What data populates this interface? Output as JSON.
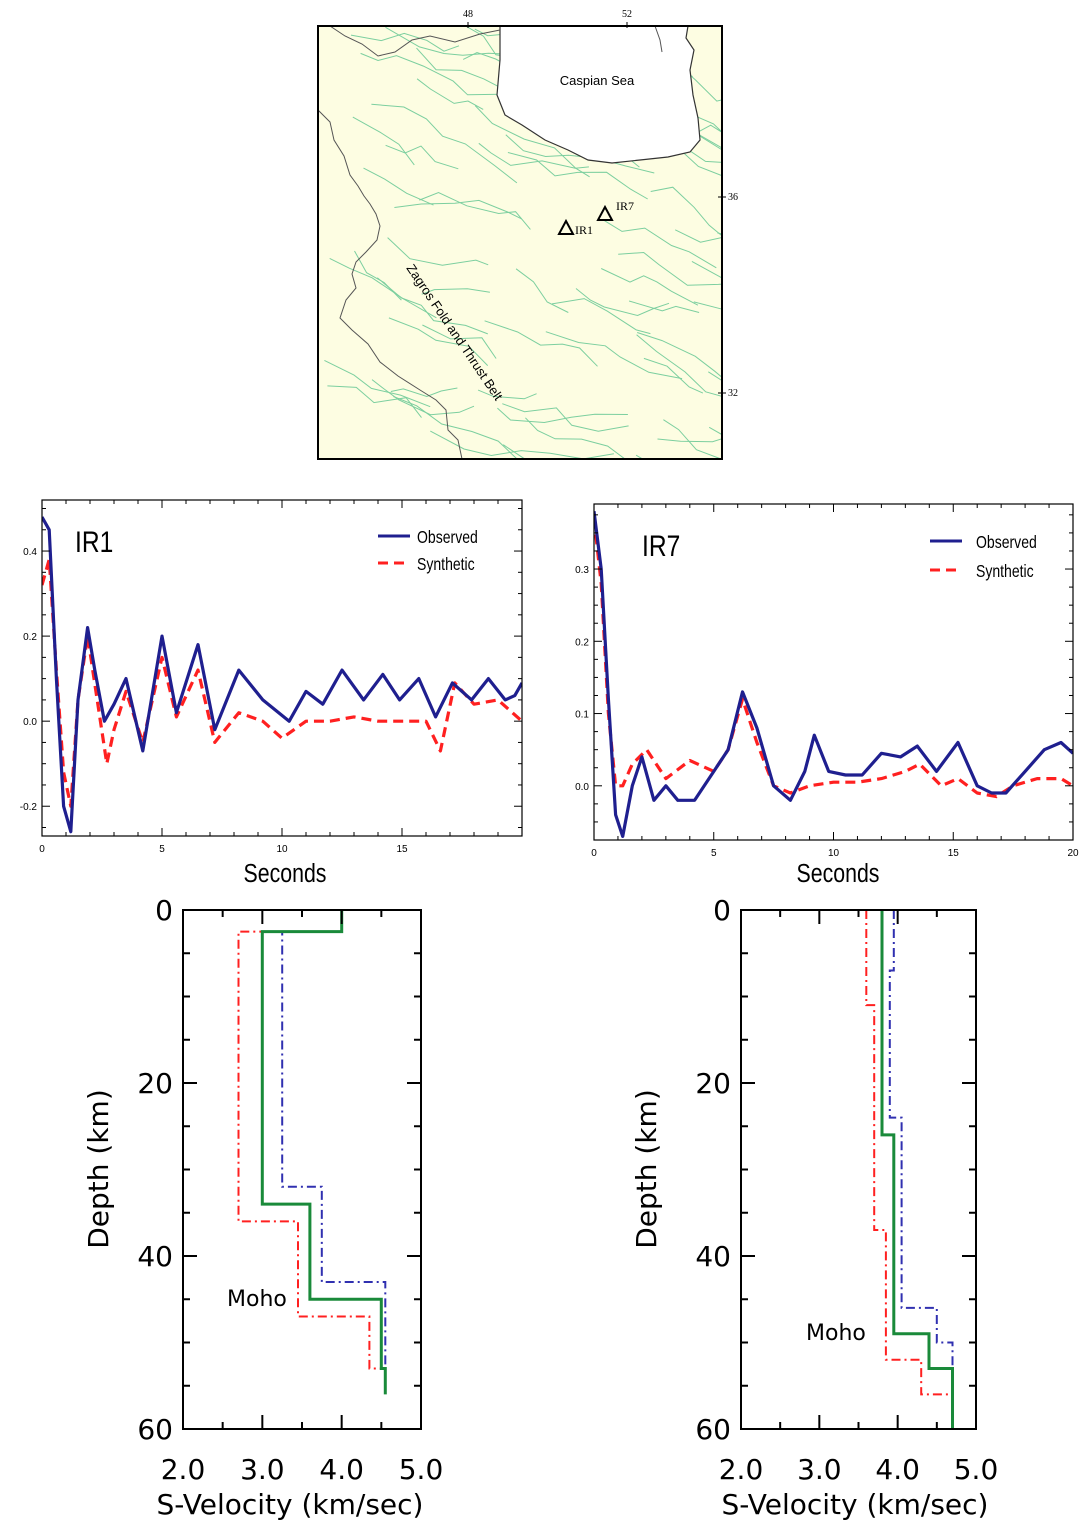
{
  "map": {
    "sea_label": "Caspian Sea",
    "belt_label": "Zagros Fold and Thrust Belt",
    "lon_ticks": [
      "48",
      "52"
    ],
    "lat_ticks": [
      "36",
      "32"
    ],
    "stations": [
      {
        "name": "IR1",
        "lon": 50.9,
        "lat": 35.7
      },
      {
        "name": "IR7",
        "lon": 51.6,
        "lat": 35.9
      }
    ],
    "colors": {
      "land": "#fdfde2",
      "sea": "#ffffff",
      "faults": "#7ccf9f",
      "border": "#555555"
    }
  },
  "chart_data": [
    {
      "type": "line",
      "title": "IR1",
      "xlabel": "Seconds",
      "ylabel": "",
      "xlim": [
        0,
        20
      ],
      "ylim": [
        -0.27,
        0.52
      ],
      "xticks": [
        "0",
        "5",
        "10",
        "15"
      ],
      "yticks": [
        "0.4",
        "0.2",
        "0.0",
        "-0.2"
      ],
      "legend_position": "top-right",
      "series": [
        {
          "name": "Observed",
          "color": "#1f1f8f",
          "style": "solid",
          "x": [
            0,
            0.3,
            0.6,
            0.9,
            1.2,
            1.5,
            1.9,
            2.2,
            2.6,
            3.0,
            3.5,
            4.2,
            5.0,
            5.6,
            6.5,
            7.2,
            8.2,
            9.2,
            10.3,
            11.0,
            11.7,
            12.5,
            13.4,
            14.2,
            14.9,
            15.7,
            16.4,
            17.1,
            17.9,
            18.6,
            19.3,
            19.7,
            20.0
          ],
          "y": [
            0.48,
            0.45,
            0.1,
            -0.2,
            -0.26,
            0.05,
            0.22,
            0.12,
            0.0,
            0.04,
            0.1,
            -0.07,
            0.2,
            0.02,
            0.18,
            -0.02,
            0.12,
            0.05,
            0.0,
            0.07,
            0.04,
            0.12,
            0.05,
            0.11,
            0.05,
            0.1,
            0.01,
            0.09,
            0.05,
            0.1,
            0.05,
            0.06,
            0.09
          ]
        },
        {
          "name": "Synthetic",
          "color": "#ff2020",
          "style": "dashed",
          "x": [
            0,
            0.3,
            0.6,
            0.9,
            1.2,
            1.5,
            1.9,
            2.3,
            2.7,
            3.0,
            3.5,
            4.2,
            5.0,
            5.6,
            6.5,
            7.2,
            8.2,
            9.2,
            10.0,
            11.0,
            12.0,
            13.0,
            14.0,
            15.0,
            16.0,
            16.6,
            17.2,
            18.0,
            19.0,
            20.0
          ],
          "y": [
            0.32,
            0.38,
            0.12,
            -0.12,
            -0.2,
            0.05,
            0.2,
            0.05,
            -0.1,
            -0.02,
            0.07,
            -0.05,
            0.15,
            0.01,
            0.12,
            -0.05,
            0.02,
            0.0,
            -0.04,
            0.0,
            0.0,
            0.01,
            0.0,
            0.0,
            0.0,
            -0.07,
            0.09,
            0.04,
            0.05,
            0.0
          ]
        }
      ]
    },
    {
      "type": "line",
      "title": "IR7",
      "xlabel": "Seconds",
      "ylabel": "",
      "xlim": [
        0,
        20
      ],
      "ylim": [
        -0.075,
        0.39
      ],
      "xticks": [
        "0",
        "5",
        "10",
        "15",
        "20"
      ],
      "yticks": [
        "0.3",
        "0.2",
        "0.1",
        "0.0"
      ],
      "legend_position": "top-right",
      "series": [
        {
          "name": "Observed",
          "color": "#1f1f8f",
          "style": "solid",
          "x": [
            0,
            0.3,
            0.6,
            0.9,
            1.2,
            1.6,
            2.0,
            2.5,
            3.0,
            3.5,
            4.2,
            5.0,
            5.6,
            6.2,
            6.8,
            7.5,
            8.2,
            8.8,
            9.2,
            9.8,
            10.5,
            11.2,
            12.0,
            12.8,
            13.5,
            14.3,
            15.2,
            16.0,
            16.6,
            17.2,
            18.0,
            18.8,
            19.5,
            20.0
          ],
          "y": [
            0.38,
            0.3,
            0.12,
            -0.04,
            -0.07,
            0.0,
            0.04,
            -0.02,
            0.0,
            -0.02,
            -0.02,
            0.02,
            0.05,
            0.13,
            0.08,
            0.0,
            -0.02,
            0.02,
            0.07,
            0.02,
            0.015,
            0.015,
            0.045,
            0.04,
            0.055,
            0.02,
            0.06,
            0.0,
            -0.01,
            -0.01,
            0.02,
            0.05,
            0.06,
            0.045
          ]
        },
        {
          "name": "Synthetic",
          "color": "#ff2020",
          "style": "dashed",
          "x": [
            0,
            0.3,
            0.6,
            0.9,
            1.2,
            1.6,
            2.2,
            3.0,
            4.0,
            5.0,
            5.6,
            6.2,
            6.8,
            7.5,
            8.2,
            9.0,
            10.0,
            11.0,
            12.0,
            13.0,
            13.6,
            14.5,
            15.2,
            16.0,
            16.8,
            17.5,
            18.5,
            19.5,
            20.0
          ],
          "y": [
            0.37,
            0.28,
            0.1,
            0.0,
            0.0,
            0.03,
            0.05,
            0.01,
            0.035,
            0.02,
            0.05,
            0.12,
            0.06,
            0.0,
            -0.01,
            0.0,
            0.005,
            0.005,
            0.01,
            0.02,
            0.03,
            0.0,
            0.01,
            -0.01,
            -0.015,
            0.0,
            0.01,
            0.01,
            0.0
          ]
        }
      ]
    },
    {
      "type": "line",
      "title": "",
      "xlabel": "S-Velocity (km/sec)",
      "ylabel": "Depth (km)",
      "xlim": [
        2.0,
        5.0
      ],
      "ylim": [
        60,
        0
      ],
      "xticks": [
        "2.0",
        "3.0",
        "4.0",
        "5.0"
      ],
      "yticks": [
        "0",
        "20",
        "40",
        "60"
      ],
      "annotation": "Moho",
      "series": [
        {
          "color": "#1a8a3a",
          "style": "solid",
          "x": [
            4.0,
            4.0,
            3.0,
            3.0,
            3.6,
            3.6,
            4.5,
            4.5,
            4.55,
            4.55
          ],
          "y": [
            0,
            2.5,
            2.5,
            34,
            34,
            45,
            45,
            53,
            53,
            56
          ]
        },
        {
          "color": "#3030b0",
          "style": "dashdot",
          "x": [
            4.0,
            4.0,
            3.25,
            3.25,
            3.75,
            3.75,
            4.55,
            4.55
          ],
          "y": [
            0,
            2.5,
            2.5,
            32,
            32,
            43,
            43,
            55
          ]
        },
        {
          "color": "#ff2020",
          "style": "dashdot",
          "x": [
            4.0,
            4.0,
            2.7,
            2.7,
            3.45,
            3.45,
            4.35,
            4.35,
            4.55,
            4.55
          ],
          "y": [
            0,
            2.5,
            2.5,
            36,
            36,
            47,
            47,
            53,
            53,
            56
          ]
        }
      ]
    },
    {
      "type": "line",
      "title": "",
      "xlabel": "S-Velocity (km/sec)",
      "ylabel": "Depth (km)",
      "xlim": [
        2.0,
        5.0
      ],
      "ylim": [
        60,
        0
      ],
      "xticks": [
        "2.0",
        "3.0",
        "4.0",
        "5.0"
      ],
      "yticks": [
        "0",
        "20",
        "40",
        "60"
      ],
      "annotation": "Moho",
      "series": [
        {
          "color": "#1a8a3a",
          "style": "solid",
          "x": [
            3.8,
            3.8,
            3.95,
            3.95,
            4.4,
            4.4,
            4.7,
            4.7
          ],
          "y": [
            0,
            26,
            26,
            49,
            49,
            53,
            53,
            60
          ]
        },
        {
          "color": "#3030b0",
          "style": "dashdot",
          "x": [
            3.95,
            3.95,
            3.9,
            3.9,
            4.05,
            4.05,
            4.5,
            4.5,
            4.7,
            4.7
          ],
          "y": [
            0,
            7,
            7,
            24,
            24,
            46,
            46,
            50,
            50,
            60
          ]
        },
        {
          "color": "#ff2020",
          "style": "dashdot",
          "x": [
            3.6,
            3.6,
            3.7,
            3.7,
            3.85,
            3.85,
            4.3,
            4.3,
            4.7,
            4.7
          ],
          "y": [
            0,
            11,
            11,
            37,
            37,
            52,
            52,
            56,
            56,
            60
          ]
        }
      ]
    }
  ]
}
